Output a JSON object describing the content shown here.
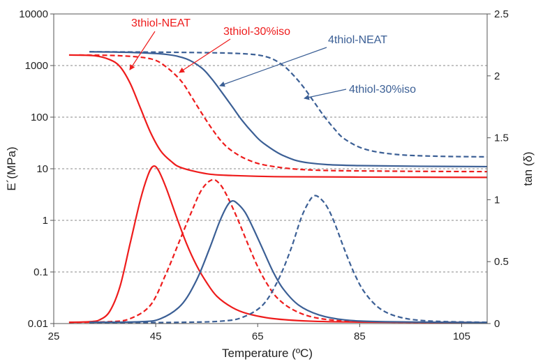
{
  "chart_data": {
    "type": "line",
    "xlabel": "Temperature (ºC)",
    "ylabel_left": "E´(MPa)",
    "ylabel_right": "tan (δ)",
    "xlim": [
      25,
      110
    ],
    "x_ticks": [
      "25",
      "45",
      "65",
      "85",
      "105"
    ],
    "ylim_left": [
      0.01,
      10000
    ],
    "y_scale_left": "log",
    "y_ticks_left": [
      "0.01",
      "0.1",
      "1",
      "10",
      "100",
      "1000",
      "10000"
    ],
    "ylim_right": [
      0,
      2.5
    ],
    "y_ticks_right": [
      "0",
      "0.5",
      "1",
      "1.5",
      "2",
      "2.5"
    ],
    "grid": "horizontal dashed",
    "colors": {
      "red": "#ee1c1c",
      "blue": "#3b5f95"
    },
    "annotations": [
      {
        "text": "3thiol-NEAT",
        "color": "#ee1c1c"
      },
      {
        "text": "3thiol-30%iso",
        "color": "#ee1c1c"
      },
      {
        "text": "4thiol-NEAT",
        "color": "#3b5f95"
      },
      {
        "text": "4thiol-30%iso",
        "color": "#3b5f95"
      }
    ],
    "series": [
      {
        "group": "3thiol-NEAT",
        "axis": "left",
        "color": "#ee1c1c",
        "dash": false,
        "points": [
          [
            28,
            1600
          ],
          [
            33,
            1550
          ],
          [
            36,
            1300
          ],
          [
            38,
            950
          ],
          [
            40,
            450
          ],
          [
            42,
            150
          ],
          [
            44,
            50
          ],
          [
            46,
            22
          ],
          [
            48,
            14
          ],
          [
            50,
            10.5
          ],
          [
            55,
            8
          ],
          [
            60,
            7.4
          ],
          [
            70,
            7
          ],
          [
            85,
            6.9
          ],
          [
            110,
            6.8
          ]
        ]
      },
      {
        "group": "3thiol-30%iso",
        "axis": "left",
        "color": "#ee1c1c",
        "dash": true,
        "points": [
          [
            30,
            1600
          ],
          [
            38,
            1550
          ],
          [
            44,
            1350
          ],
          [
            47,
            950
          ],
          [
            50,
            500
          ],
          [
            52,
            250
          ],
          [
            54,
            120
          ],
          [
            56,
            60
          ],
          [
            58,
            33
          ],
          [
            60,
            22
          ],
          [
            63,
            15
          ],
          [
            67,
            11.5
          ],
          [
            75,
            9.5
          ],
          [
            90,
            9
          ],
          [
            110,
            8.8
          ]
        ]
      },
      {
        "group": "4thiol-NEAT",
        "axis": "left",
        "color": "#3b5f95",
        "dash": false,
        "points": [
          [
            32,
            1850
          ],
          [
            40,
            1800
          ],
          [
            47,
            1650
          ],
          [
            51,
            1350
          ],
          [
            54,
            900
          ],
          [
            56,
            550
          ],
          [
            58,
            300
          ],
          [
            60,
            160
          ],
          [
            62,
            85
          ],
          [
            64,
            50
          ],
          [
            66,
            32
          ],
          [
            70,
            18
          ],
          [
            75,
            13
          ],
          [
            85,
            11.5
          ],
          [
            110,
            11
          ]
        ]
      },
      {
        "group": "4thiol-30%iso",
        "axis": "left",
        "color": "#3b5f95",
        "dash": true,
        "points": [
          [
            32,
            1850
          ],
          [
            50,
            1800
          ],
          [
            62,
            1700
          ],
          [
            67,
            1450
          ],
          [
            70,
            1000
          ],
          [
            72,
            650
          ],
          [
            74,
            380
          ],
          [
            76,
            200
          ],
          [
            78,
            105
          ],
          [
            80,
            60
          ],
          [
            82,
            38
          ],
          [
            86,
            24
          ],
          [
            92,
            19
          ],
          [
            100,
            17.5
          ],
          [
            110,
            17
          ]
        ]
      },
      {
        "group": "3thiol-NEAT",
        "axis": "right",
        "color": "#ee1c1c",
        "dash": false,
        "points": [
          [
            28,
            0.01
          ],
          [
            32,
            0.015
          ],
          [
            34,
            0.03
          ],
          [
            36,
            0.1
          ],
          [
            38,
            0.3
          ],
          [
            40,
            0.65
          ],
          [
            42,
            1.0
          ],
          [
            43.5,
            1.2
          ],
          [
            44.5,
            1.27
          ],
          [
            45.5,
            1.24
          ],
          [
            47,
            1.1
          ],
          [
            49,
            0.87
          ],
          [
            51,
            0.65
          ],
          [
            53,
            0.47
          ],
          [
            55,
            0.33
          ],
          [
            57,
            0.22
          ],
          [
            60,
            0.13
          ],
          [
            63,
            0.08
          ],
          [
            68,
            0.04
          ],
          [
            75,
            0.02
          ],
          [
            85,
            0.012
          ],
          [
            110,
            0.008
          ]
        ]
      },
      {
        "group": "3thiol-30%iso",
        "axis": "right",
        "color": "#ee1c1c",
        "dash": true,
        "points": [
          [
            28,
            0.01
          ],
          [
            36,
            0.015
          ],
          [
            40,
            0.04
          ],
          [
            44,
            0.15
          ],
          [
            47,
            0.4
          ],
          [
            49.5,
            0.65
          ],
          [
            52,
            0.9
          ],
          [
            54,
            1.08
          ],
          [
            56,
            1.16
          ],
          [
            57.5,
            1.13
          ],
          [
            59,
            1.03
          ],
          [
            61,
            0.85
          ],
          [
            63,
            0.65
          ],
          [
            65,
            0.46
          ],
          [
            67,
            0.31
          ],
          [
            69,
            0.2
          ],
          [
            72,
            0.11
          ],
          [
            76,
            0.05
          ],
          [
            82,
            0.02
          ],
          [
            90,
            0.012
          ],
          [
            110,
            0.008
          ]
        ]
      },
      {
        "group": "4thiol-NEAT",
        "axis": "right",
        "color": "#3b5f95",
        "dash": false,
        "points": [
          [
            32,
            0.01
          ],
          [
            42,
            0.015
          ],
          [
            46,
            0.04
          ],
          [
            50,
            0.15
          ],
          [
            53,
            0.35
          ],
          [
            55.5,
            0.6
          ],
          [
            57.5,
            0.82
          ],
          [
            59,
            0.95
          ],
          [
            60,
            0.99
          ],
          [
            61,
            0.97
          ],
          [
            62.5,
            0.9
          ],
          [
            64,
            0.78
          ],
          [
            66,
            0.6
          ],
          [
            68,
            0.42
          ],
          [
            70,
            0.28
          ],
          [
            73,
            0.15
          ],
          [
            77,
            0.07
          ],
          [
            82,
            0.03
          ],
          [
            90,
            0.015
          ],
          [
            110,
            0.008
          ]
        ]
      },
      {
        "group": "4thiol-30%iso",
        "axis": "right",
        "color": "#3b5f95",
        "dash": true,
        "points": [
          [
            32,
            0.005
          ],
          [
            50,
            0.01
          ],
          [
            58,
            0.02
          ],
          [
            62,
            0.05
          ],
          [
            66,
            0.15
          ],
          [
            69,
            0.35
          ],
          [
            71.5,
            0.6
          ],
          [
            73.5,
            0.85
          ],
          [
            75,
            0.98
          ],
          [
            76,
            1.03
          ],
          [
            77,
            1.02
          ],
          [
            78.5,
            0.95
          ],
          [
            80,
            0.82
          ],
          [
            82,
            0.6
          ],
          [
            84,
            0.4
          ],
          [
            86,
            0.25
          ],
          [
            89,
            0.12
          ],
          [
            93,
            0.05
          ],
          [
            99,
            0.02
          ],
          [
            110,
            0.01
          ]
        ]
      }
    ]
  }
}
